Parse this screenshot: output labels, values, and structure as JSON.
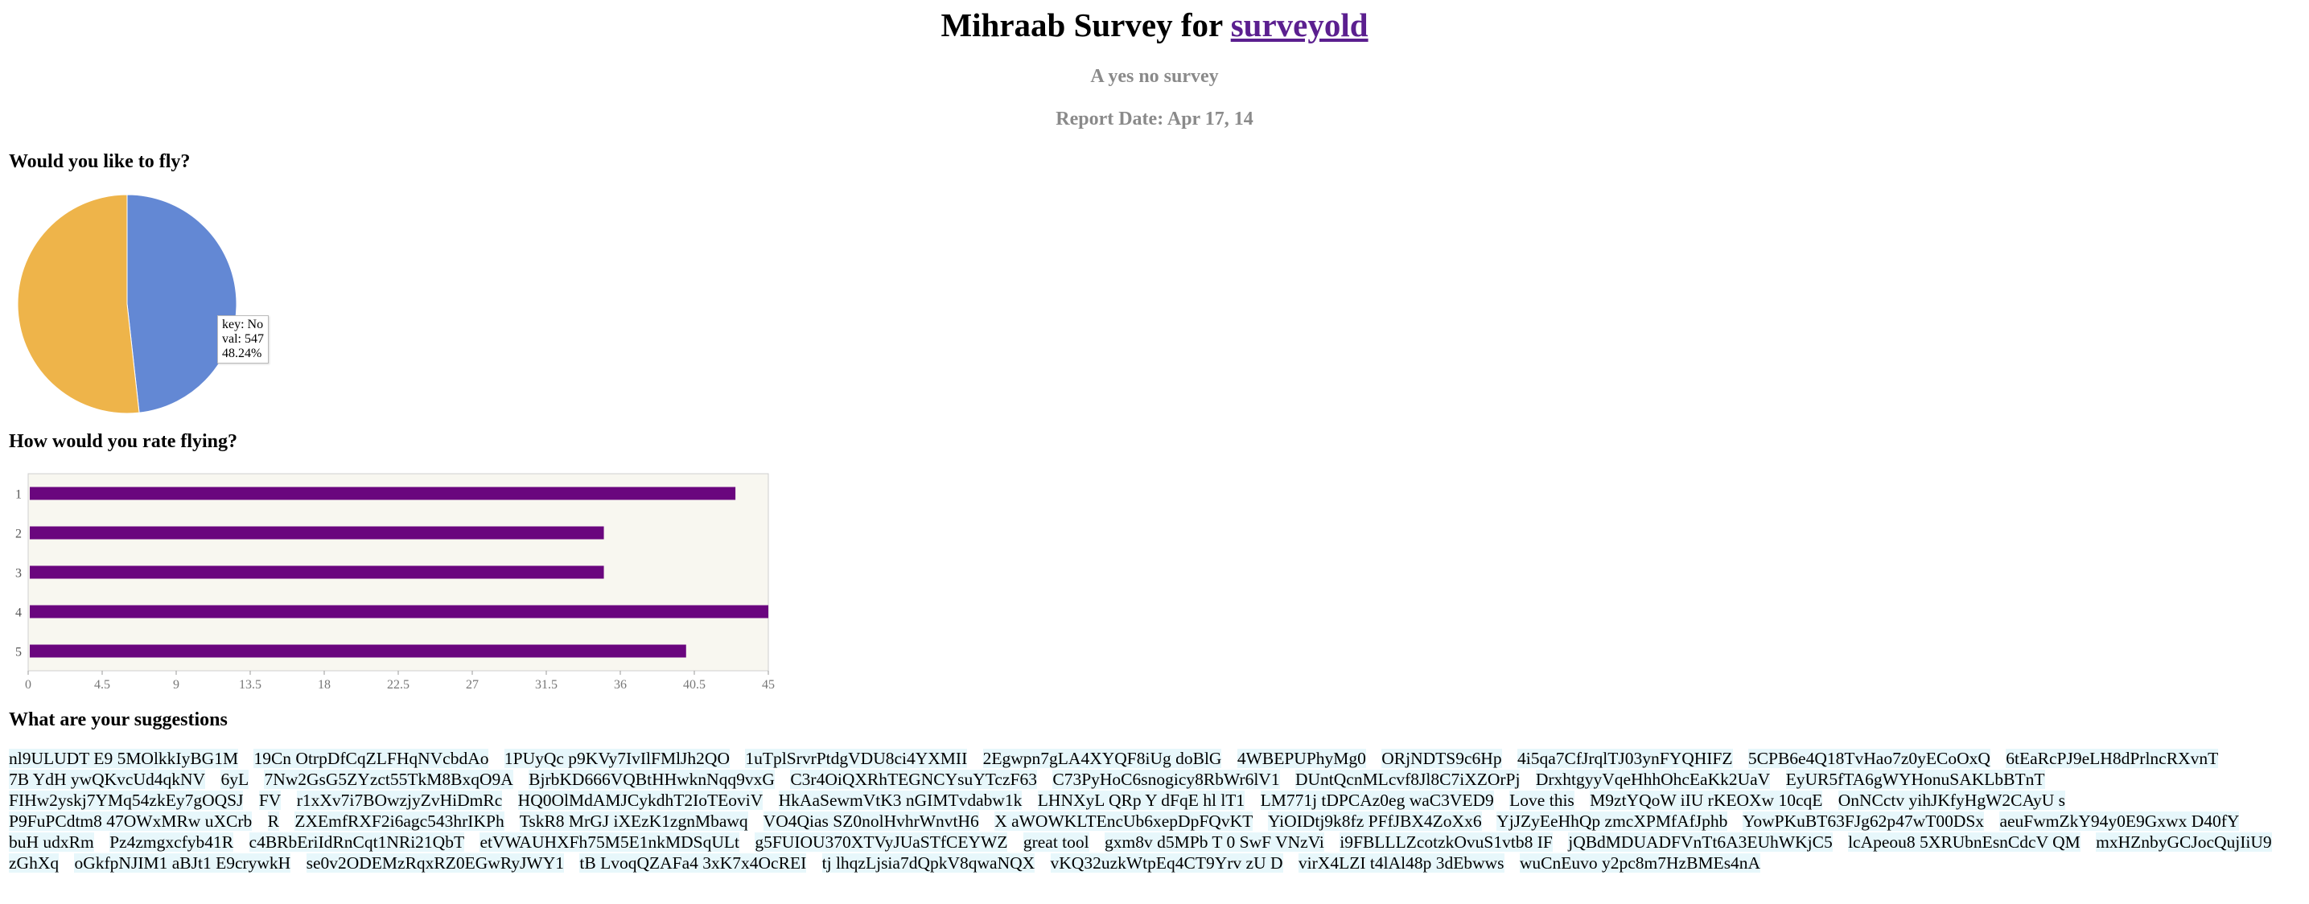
{
  "header": {
    "title_prefix": "Mihraab Survey for",
    "title_link": "surveyold",
    "subtitle": "A yes no survey",
    "report_date": "Report Date: Apr 17, 14"
  },
  "questions": {
    "q1": "Would you like to fly?",
    "q2": "How would you rate flying?",
    "q3": "What are your suggestions"
  },
  "tooltip": {
    "key": "key: No",
    "val": "val: 547",
    "pct": "48.24%"
  },
  "colors": {
    "pie_no": "#6388d4",
    "pie_yes": "#eeb44a",
    "bar": "#6a067e",
    "plot_bg": "#f8f7f0",
    "link": "#5b1f8f",
    "suggestion_bg": "#e7f7fb"
  },
  "chart_data": [
    {
      "type": "pie",
      "title": "Would you like to fly?",
      "slices": [
        {
          "name": "No",
          "value": 547,
          "percent": 48.24
        },
        {
          "name": "",
          "value": 587,
          "percent": 51.76
        }
      ]
    },
    {
      "type": "bar",
      "orientation": "horizontal",
      "title": "How would you rate flying?",
      "categories": [
        "1",
        "2",
        "3",
        "4",
        "5"
      ],
      "values": [
        43,
        35,
        35,
        45,
        40
      ],
      "xlim": [
        0,
        45
      ],
      "xticks": [
        "0",
        "4.5",
        "9",
        "13.5",
        "18",
        "22.5",
        "27",
        "31.5",
        "36",
        "40.5",
        "45"
      ]
    }
  ],
  "suggestions": [
    "nl9ULUDT E9 5MOlkkIyBG1M",
    "19Cn OtrpDfCqZLFHqNVcbdAo",
    "1PUyQc p9KVy7IvIlFMlJh2QO",
    "1uTplSrvrPtdgVDU8ci4YXMII",
    "2Egwpn7gLA4XYQF8iUg doBlG",
    "4WBEPUPhyMg0",
    "ORjNDTS9c6Hp",
    "4i5qa7CfJrqlTJ03ynFYQHIFZ",
    "5CPB6e4Q18TvHao7z0yECoOxQ",
    "6tEaRcPJ9eLH8dPrlncRXvnT",
    "7B YdH ywQKvcUd4qkNV",
    "6yL",
    "7Nw2GsG5ZYzct55TkM8BxqO9A",
    "BjrbKD666VQBtHHwknNqq9vxG",
    "C3r4OiQXRhTEGNCYsuYTczF63",
    "C73PyHoC6snogicy8RbWr6lV1",
    "DUntQcnMLcvf8Jl8C7iXZOrPj",
    "DrxhtgyyVqeHhhOhcEaKk2UaV",
    "EyUR5fTA6gWYHonuSAKLbBTnT",
    "FIHw2yskj7YMq54zkEy7gOQSJ",
    "FV",
    "r1xXv7i7BOwzjyZvHiDmRc",
    "HQ0OlMdAMJCykdhT2IoTEoviV",
    "HkAaSewmVtK3 nGIMTvdabw1k",
    "LHNXyL QRp Y dFqE hl lT1",
    "LM771j tDPCAz0eg waC3VED9",
    "Love this",
    "M9ztYQoW iIU rKEOXw 10cqE",
    "OnNCctv yihJKfyHgW2CAyU s",
    "P9FuPCdtm8 47OWxMRw uXCrb",
    "R",
    "ZXEmfRXF2i6agc543hrIKPh",
    "TskR8 MrGJ iXEzK1zgnMbawq",
    "VO4Qias SZ0nolHvhrWnvtH6",
    "X aWOWKLTEncUb6xepDpFQvKT",
    "YiOIDtj9k8fz PFfJBX4ZoXx6",
    "YjJZyEeHhQp zmcXPMfAfJphb",
    "YowPKuBT63FJg62p47wT00DSx",
    "aeuFwmZkY94y0E9Gxwx D40fY",
    "buH udxRm",
    "Pz4zmgxcfyb41R",
    "c4BRbEriIdRnCqt1NRi21QbT",
    "etVWAUHXFh75M5E1nkMDSqULt",
    "g5FUIOU370XTVyJUaSTfCEYWZ",
    "great tool",
    "gxm8v d5MPb T 0 SwF VNzVi",
    "i9FBLLLZcotzkOvuS1vtb8 IF",
    "jQBdMDUADFVnTt6A3EUhWKjC5",
    "lcApeou8 5XRUbnEsnCdcV QM",
    "mxHZnbyGCJocQujIiU9",
    "zGhXq",
    "oGkfpNJIM1 aBJt1 E9crywkH",
    "se0v2ODEMzRqxRZ0EGwRyJWY1",
    "tB LvoqQZAFa4 3xK7x4OcREI",
    "tj lhqzLjsia7dQpkV8qwaNQX",
    "vKQ32uzkWtpEq4CT9Yrv zU D",
    "virX4LZI t4lAl48p 3dEbwws",
    "wuCnEuvo y2pc8m7HzBMEs4nA"
  ]
}
